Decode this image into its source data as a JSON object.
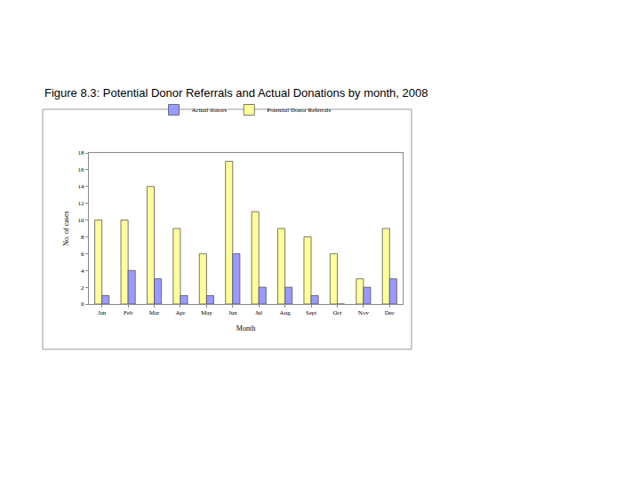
{
  "chart_data": {
    "type": "bar",
    "title": "Figure 8.3: Potential Donor Referrals and Actual Donations by month, 2008",
    "x_label": "Month",
    "y_label": "No. of cases",
    "categories": [
      "Jan",
      "Feb",
      "Mar",
      "Apr",
      "May",
      "Jun",
      "Jul",
      "Aug",
      "Sept",
      "Oct",
      "Nov",
      "Dec"
    ],
    "series": [
      {
        "name": "Potential Donor Referrals",
        "color": "#ffff99",
        "values": [
          10,
          10,
          14,
          9,
          6,
          17,
          11,
          9,
          8,
          6,
          3,
          9
        ]
      },
      {
        "name": "Actual donors",
        "color": "#9999ff",
        "values": [
          1,
          4,
          3,
          1,
          1,
          6,
          2,
          2,
          1,
          0,
          2,
          3
        ]
      }
    ],
    "ylim": [
      0,
      18
    ],
    "yticks": [
      0,
      2,
      4,
      6,
      8,
      10,
      12,
      14,
      16,
      18
    ],
    "grid": false,
    "legend": "top"
  }
}
